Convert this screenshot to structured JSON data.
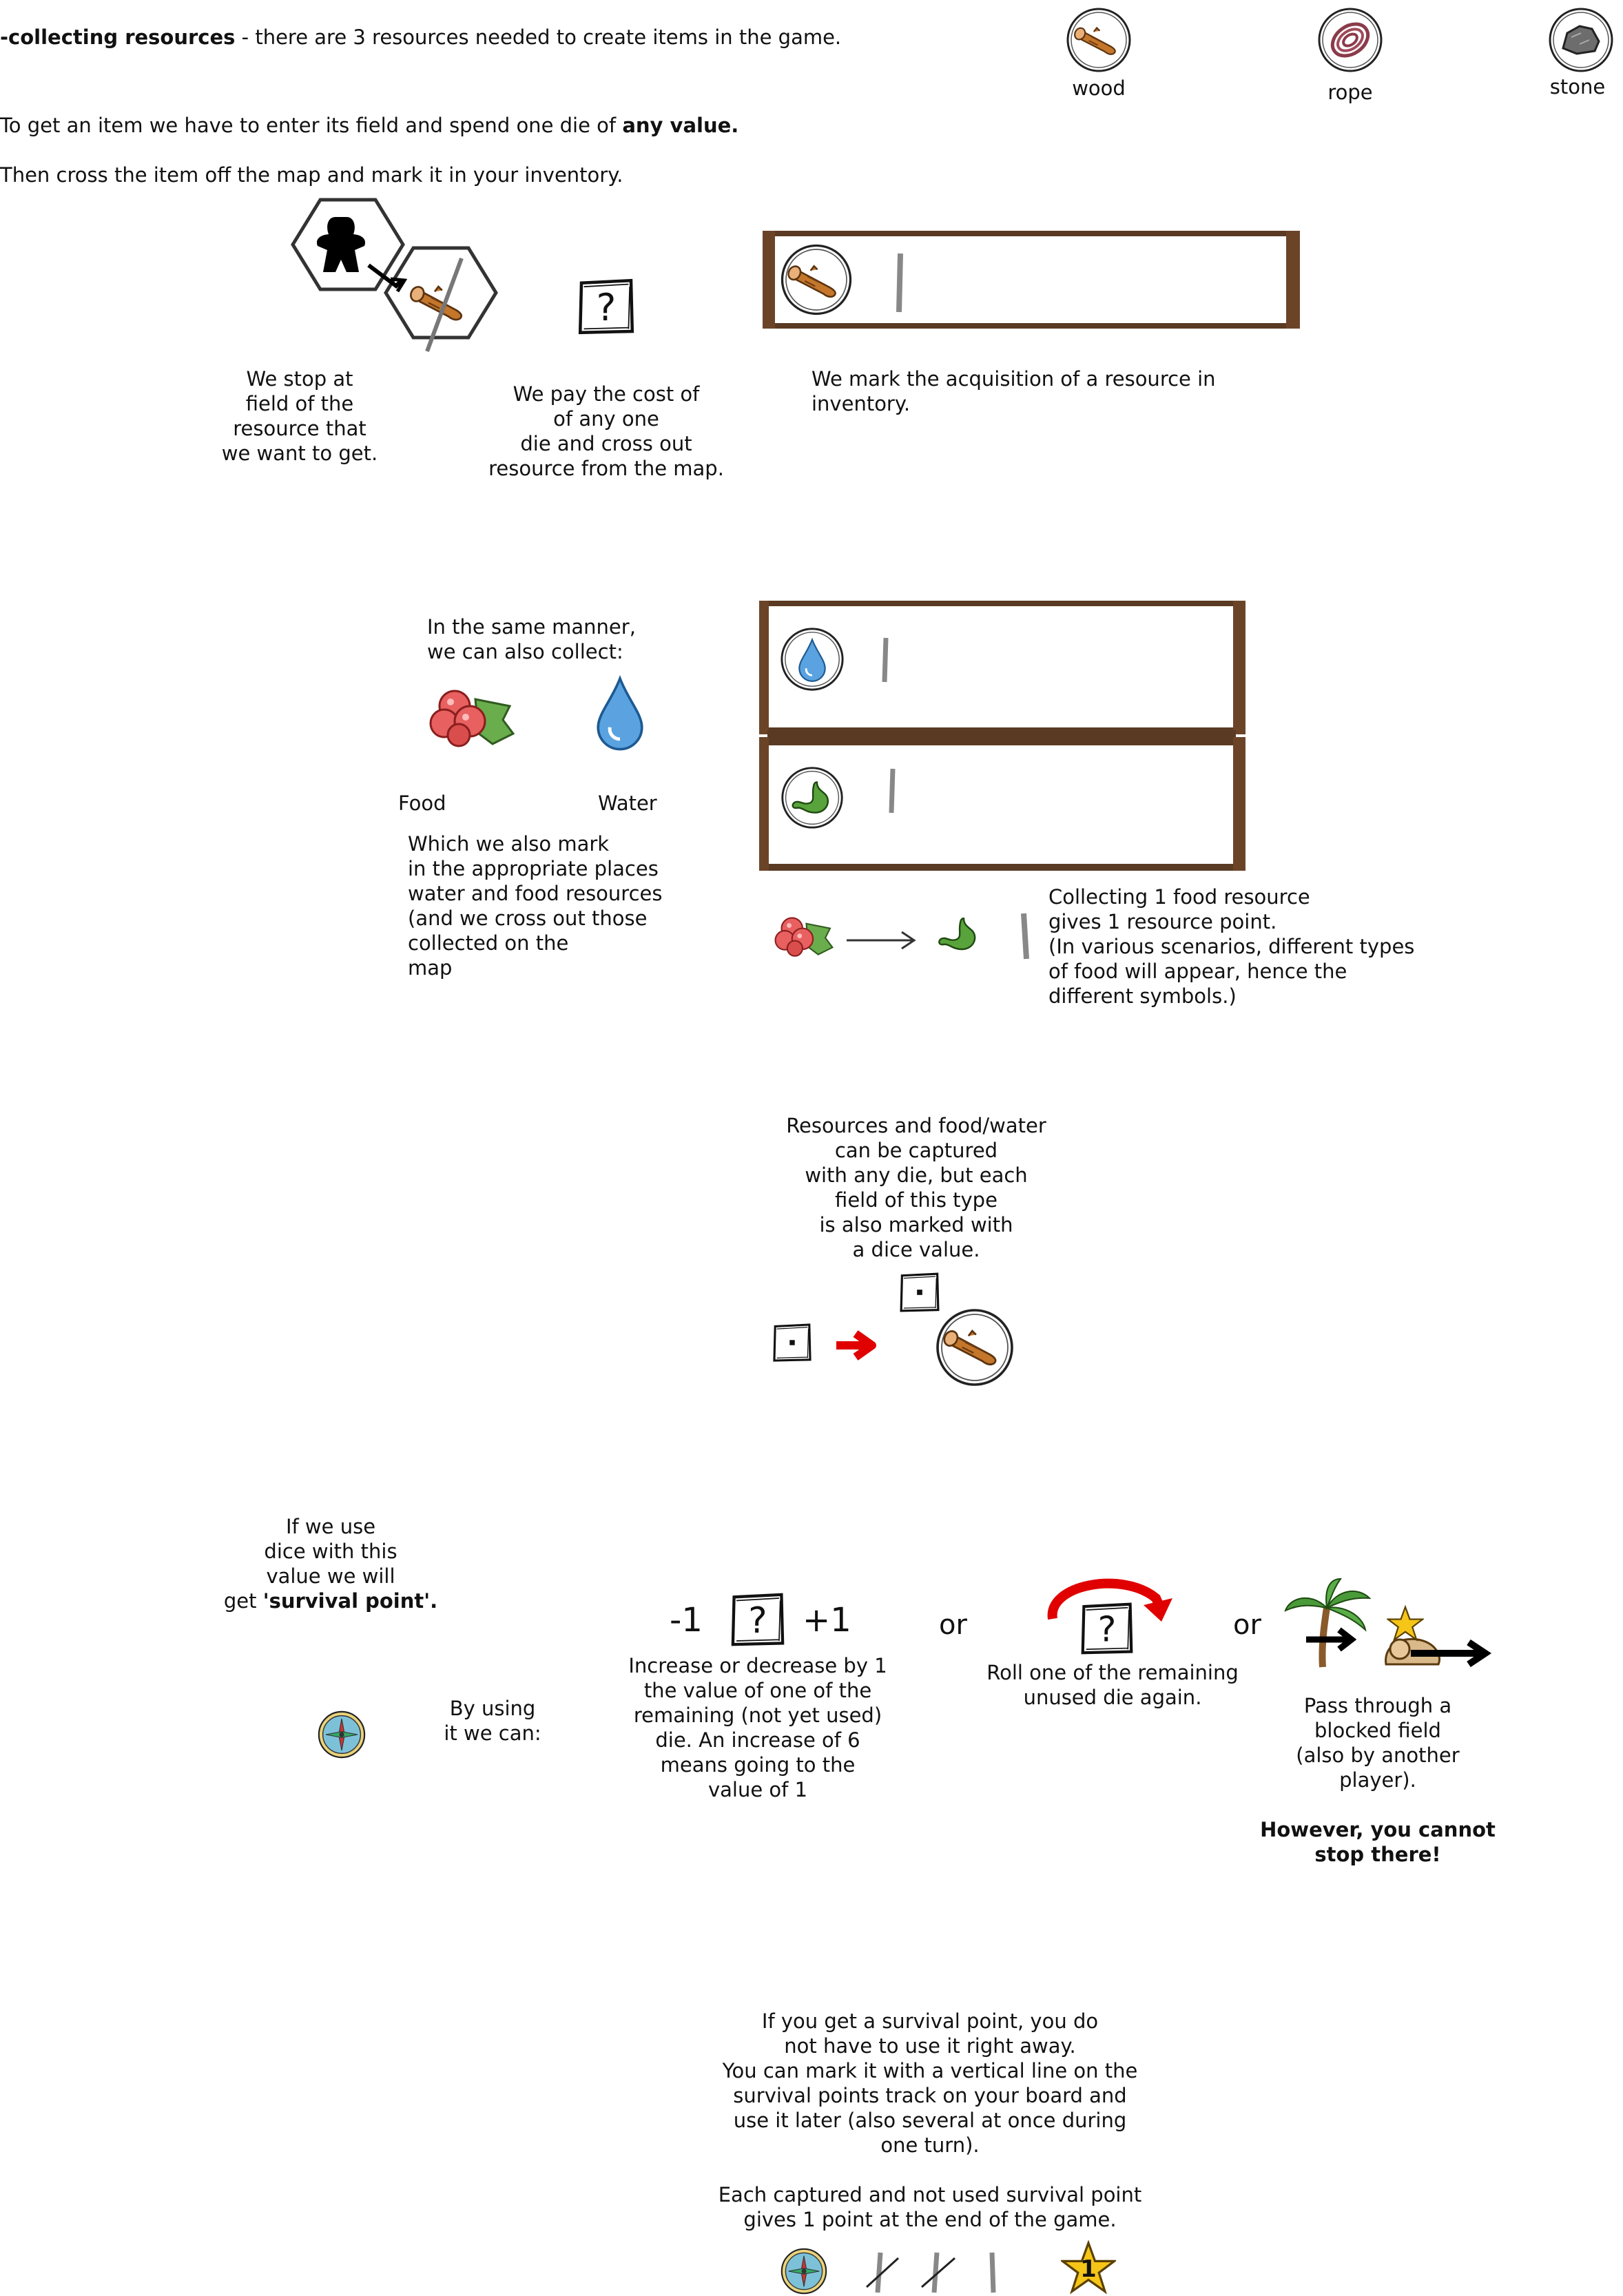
{
  "header": {
    "title_bold": "-collecting resources",
    "title_rest": " - there are 3 resources needed to create items in the game.",
    "line2_a": "To get an item we have to enter its field and spend one die of ",
    "line2_b": "any value.",
    "line3": "Then cross the item off the map and mark it in your inventory."
  },
  "resources": [
    {
      "label": "wood",
      "icon": "wood-log-icon"
    },
    {
      "label": "rope",
      "icon": "rope-coil-icon"
    },
    {
      "label": "stone",
      "icon": "stone-icon"
    }
  ],
  "steps": {
    "stop": "We stop at\nfield of the\nresource that\nwe want to get.",
    "pay": "We pay the cost of\nof any one\ndie and cross out\nresource from the map.",
    "mark": "We mark the acquisition of a resource in\ninventory."
  },
  "food_water": {
    "intro": "In the same manner,\nwe can also collect:",
    "food_label": "Food",
    "water_label": "Water",
    "mark_text": "Which we also mark\nin the appropriate places\nwater and food resources\n(and we cross out those\n collected on the\nmap",
    "food_note": "Collecting 1 food resource\ngives 1 resource point.\n(In various scenarios, different types\nof food will appear, hence the\ndifferent symbols.)"
  },
  "dice_value": {
    "text": "Resources and food/water\ncan be captured\nwith any die, but each\nfield of this type\nis also marked with\na dice value."
  },
  "survival": {
    "if_use_a": "If we use\ndice with this\nvalue we will\nget ",
    "if_use_b": "'survival point'.",
    "by_using": "By using\nit we can:",
    "minus": "-1",
    "plus": "+1",
    "or1": "or",
    "or2": "or",
    "option1": "Increase or decrease by 1\nthe value of one of the\nremaining (not yet used)\ndie. An increase of 6\nmeans going to the\nvalue of 1",
    "option2": "Roll one of the remaining\nunused die again.",
    "option3": "Pass through a\nblocked field\n(also by another\nplayer).",
    "option3_bold": "However, you cannot\nstop there!"
  },
  "footer": {
    "text": "If you get a survival point, you do\nnot have to use it right away.\nYou can mark it with a vertical line on the\nsurvival points track on your board and\nuse it later (also several at once during\none turn).\n\nEach captured and not used survival point\ngives 1 point at the end of the game.",
    "star_value": "1"
  },
  "glyphs": {
    "question": "?",
    "star_num": "1"
  },
  "colors": {
    "wood_brown": "#b5651d",
    "plank_brown": "#5a3a22",
    "water_blue": "#3d8fd6",
    "food_red": "#e05a5a",
    "food_green": "#4a9a3a",
    "arrow_red": "#e00000",
    "star_yellow": "#f5c518"
  }
}
